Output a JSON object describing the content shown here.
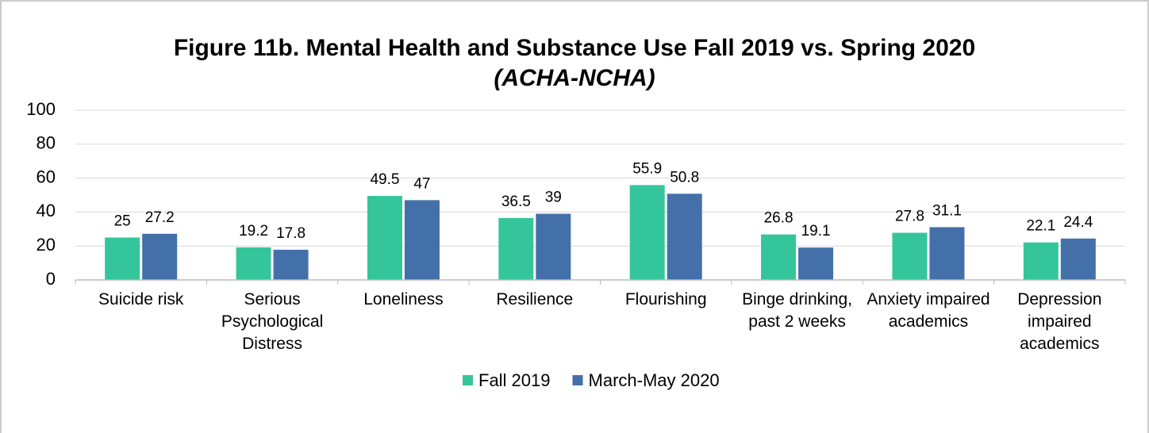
{
  "chart_data": {
    "type": "bar",
    "title": "Figure 11b. Mental Health and Substance Use Fall 2019 vs. Spring 2020",
    "subtitle": "(ACHA-NCHA)",
    "categories": [
      "Suicide risk",
      "Serious Psychological Distress",
      "Loneliness",
      "Resilience",
      "Flourishing",
      "Binge drinking, past 2 weeks",
      "Anxiety impaired academics",
      "Depression impaired academics"
    ],
    "series": [
      {
        "name": "Fall 2019",
        "color": "#35c59a",
        "values": [
          25,
          19.2,
          49.5,
          36.5,
          55.9,
          26.8,
          27.8,
          22.1
        ]
      },
      {
        "name": "March-May 2020",
        "color": "#4470aa",
        "values": [
          27.2,
          17.8,
          47,
          39,
          50.8,
          19.1,
          31.1,
          24.4
        ]
      }
    ],
    "ylim": [
      0,
      100
    ],
    "yticks": [
      0,
      20,
      40,
      60,
      80,
      100
    ],
    "grid": true,
    "legend": "bottom"
  }
}
